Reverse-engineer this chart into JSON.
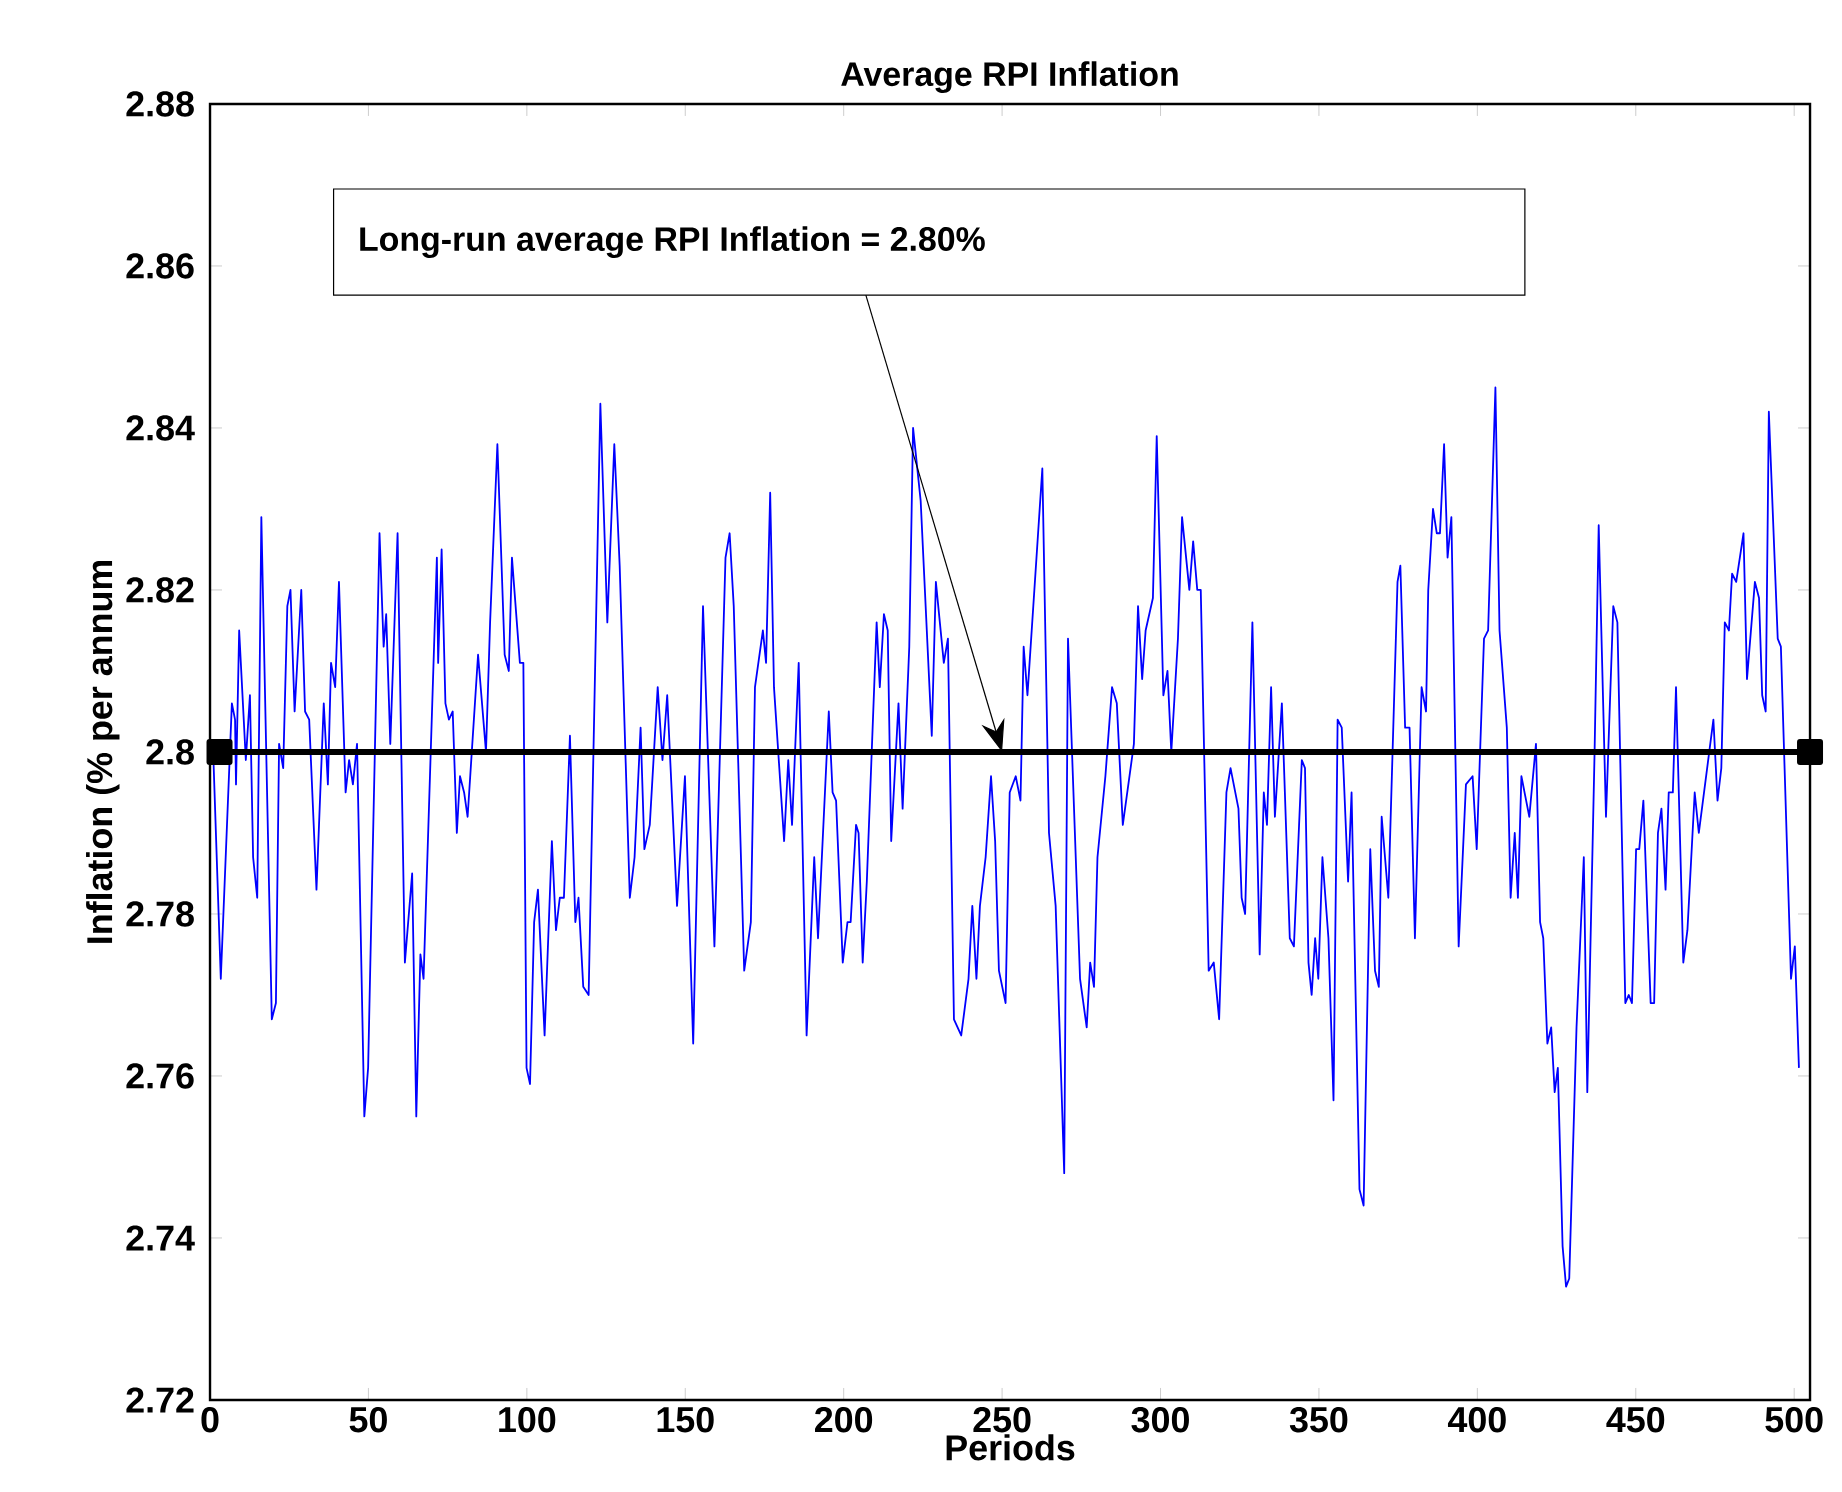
{
  "chart_data": {
    "type": "line",
    "title": "Average RPI Inflation",
    "xlabel": "Periods",
    "ylabel": "Inflation (% per annum",
    "xlim": [
      0,
      505
    ],
    "ylim": [
      2.72,
      2.88
    ],
    "xticks": [
      0,
      50,
      100,
      150,
      200,
      250,
      300,
      350,
      400,
      450,
      500
    ],
    "yticks": [
      2.72,
      2.74,
      2.76,
      2.78,
      2.8,
      2.82,
      2.84,
      2.86,
      2.88
    ],
    "annotations": [
      "Long-run average RPI Inflation = 2.80%"
    ],
    "series": [
      {
        "color": "#0000ff",
        "x": [
          1,
          3.4,
          6.9,
          7.9,
          8.2,
          9.2,
          11.3,
          12.6,
          13.6,
          14.9,
          16.2,
          19.5,
          20.8,
          21.8,
          23.1,
          24.4,
          25.4,
          26.7,
          28.8,
          30,
          31.3,
          33.6,
          35.9,
          37.2,
          38.2,
          39.5,
          40.7,
          42.8,
          43.9,
          45.1,
          46.4,
          48.7,
          49.9,
          53.5,
          54.8,
          55.6,
          56.9,
          59.2,
          61.5,
          63.8,
          65.1,
          66.4,
          67.4,
          71.6,
          72,
          73.1,
          74.3,
          75.4,
          76.6,
          77.9,
          78.9,
          80.2,
          81.3,
          84.6,
          87.1,
          88.4,
          90.7,
          93,
          94.3,
          95.3,
          97.8,
          98.9,
          99.9,
          101,
          102.3,
          103.5,
          105.6,
          107.9,
          109.2,
          110.4,
          111.7,
          113.6,
          115.3,
          116.3,
          117.8,
          119.5,
          123.2,
          125.4,
          127.6,
          129.3,
          132.5,
          134,
          135.9,
          137.1,
          138.8,
          141.3,
          142.8,
          144.3,
          147.4,
          149.9,
          152.5,
          155.6,
          159.2,
          162.7,
          164,
          165.3,
          168.6,
          170.7,
          172,
          174.5,
          175.5,
          176.8,
          178,
          181.2,
          182.5,
          183.7,
          185.8,
          188.3,
          190.7,
          191.9,
          195.3,
          196.5,
          197.6,
          199.7,
          201.2,
          202.2,
          203.9,
          204.7,
          206,
          207.3,
          210.4,
          211.4,
          212.7,
          213.9,
          215,
          217.3,
          218.6,
          220.7,
          221.9,
          224.3,
          227.8,
          229.1,
          231.6,
          232.9,
          234.8,
          237.1,
          239.4,
          240.6,
          241.9,
          243,
          244.8,
          246.5,
          247.8,
          249,
          251.1,
          252.4,
          254.3,
          255.8,
          256.8,
          258,
          262.7,
          264.8,
          266.9,
          269.6,
          270.8,
          274.6,
          276.7,
          277.8,
          279,
          280.1,
          282.6,
          284.7,
          286.2,
          288.1,
          291.6,
          292.9,
          294.2,
          295.3,
          297.6,
          298.8,
          300.9,
          302.2,
          303.4,
          305.5,
          306.8,
          309.1,
          310.3,
          311.6,
          312.7,
          315.2,
          316.8,
          318.5,
          320.8,
          322.1,
          324.6,
          325.6,
          326.7,
          329,
          331.3,
          332.6,
          333.6,
          334.9,
          336.1,
          338.3,
          340.8,
          342.1,
          344.6,
          345.6,
          346.7,
          347.7,
          348.8,
          349.8,
          351.1,
          353,
          354.6,
          355.9,
          357.2,
          359.2,
          360.3,
          362.8,
          364.1,
          366.2,
          367.7,
          368.9,
          369.8,
          371.9,
          374.8,
          375.7,
          377.2,
          378.6,
          380.3,
          382.4,
          383.8,
          384.5,
          386,
          387.2,
          388.2,
          389.5,
          390.6,
          391.8,
          394.1,
          396.4,
          398.5,
          399.8,
          402.1,
          403.4,
          405.7,
          407,
          409.3,
          410.5,
          411.8,
          412.8,
          413.9,
          416.4,
          418.5,
          419.8,
          420.8,
          422.1,
          423.3,
          424.4,
          425.4,
          426.9,
          428,
          429,
          431.3,
          433.6,
          434.7,
          437,
          438.3,
          440.6,
          442.9,
          444.2,
          446.7,
          447.8,
          448.8,
          450.1,
          451.1,
          452.4,
          454.7,
          455.8,
          457,
          458.1,
          459.4,
          460.4,
          461.7,
          462.7,
          465,
          466.3,
          468.6,
          469.9,
          474.5,
          475.8,
          477,
          478.1,
          479.4,
          480.4,
          481.7,
          484,
          485.1,
          487.6,
          488.9,
          489.9,
          491,
          492,
          494.8,
          495.8,
          499,
          500.2,
          501.5
        ],
        "values": [
          2.8,
          2.772,
          2.806,
          2.804,
          2.796,
          2.815,
          2.799,
          2.807,
          2.787,
          2.782,
          2.829,
          2.767,
          2.769,
          2.801,
          2.798,
          2.818,
          2.82,
          2.805,
          2.82,
          2.805,
          2.804,
          2.783,
          2.806,
          2.796,
          2.811,
          2.808,
          2.821,
          2.795,
          2.799,
          2.796,
          2.801,
          2.755,
          2.761,
          2.827,
          2.813,
          2.817,
          2.801,
          2.827,
          2.774,
          2.785,
          2.755,
          2.775,
          2.772,
          2.824,
          2.811,
          2.825,
          2.806,
          2.804,
          2.805,
          2.79,
          2.797,
          2.795,
          2.792,
          2.812,
          2.8,
          2.816,
          2.838,
          2.812,
          2.81,
          2.824,
          2.811,
          2.811,
          2.761,
          2.759,
          2.779,
          2.783,
          2.765,
          2.789,
          2.778,
          2.782,
          2.782,
          2.802,
          2.779,
          2.782,
          2.771,
          2.77,
          2.843,
          2.816,
          2.838,
          2.823,
          2.782,
          2.787,
          2.803,
          2.788,
          2.791,
          2.808,
          2.799,
          2.807,
          2.781,
          2.797,
          2.764,
          2.818,
          2.776,
          2.824,
          2.827,
          2.818,
          2.773,
          2.779,
          2.808,
          2.815,
          2.811,
          2.832,
          2.808,
          2.789,
          2.799,
          2.791,
          2.811,
          2.765,
          2.787,
          2.777,
          2.805,
          2.795,
          2.794,
          2.774,
          2.779,
          2.779,
          2.791,
          2.79,
          2.774,
          2.784,
          2.816,
          2.808,
          2.817,
          2.815,
          2.789,
          2.806,
          2.793,
          2.813,
          2.84,
          2.831,
          2.802,
          2.821,
          2.811,
          2.814,
          2.767,
          2.765,
          2.772,
          2.781,
          2.772,
          2.781,
          2.787,
          2.797,
          2.789,
          2.773,
          2.769,
          2.795,
          2.797,
          2.794,
          2.813,
          2.807,
          2.835,
          2.79,
          2.781,
          2.748,
          2.814,
          2.772,
          2.766,
          2.774,
          2.771,
          2.787,
          2.797,
          2.808,
          2.806,
          2.791,
          2.801,
          2.818,
          2.809,
          2.815,
          2.819,
          2.839,
          2.807,
          2.81,
          2.8,
          2.814,
          2.829,
          2.82,
          2.826,
          2.82,
          2.82,
          2.773,
          2.774,
          2.767,
          2.795,
          2.798,
          2.793,
          2.782,
          2.78,
          2.816,
          2.775,
          2.795,
          2.791,
          2.808,
          2.792,
          2.806,
          2.777,
          2.776,
          2.799,
          2.798,
          2.774,
          2.77,
          2.777,
          2.772,
          2.787,
          2.777,
          2.757,
          2.804,
          2.803,
          2.784,
          2.795,
          2.746,
          2.744,
          2.788,
          2.773,
          2.771,
          2.792,
          2.782,
          2.821,
          2.823,
          2.803,
          2.803,
          2.777,
          2.808,
          2.805,
          2.82,
          2.83,
          2.827,
          2.827,
          2.838,
          2.824,
          2.829,
          2.776,
          2.796,
          2.797,
          2.788,
          2.814,
          2.815,
          2.845,
          2.815,
          2.803,
          2.782,
          2.79,
          2.782,
          2.797,
          2.792,
          2.801,
          2.779,
          2.777,
          2.764,
          2.766,
          2.758,
          2.761,
          2.739,
          2.734,
          2.735,
          2.766,
          2.787,
          2.758,
          2.8,
          2.828,
          2.792,
          2.818,
          2.816,
          2.769,
          2.77,
          2.769,
          2.788,
          2.788,
          2.794,
          2.769,
          2.769,
          2.79,
          2.793,
          2.783,
          2.795,
          2.795,
          2.808,
          2.774,
          2.778,
          2.795,
          2.79,
          2.804,
          2.794,
          2.798,
          2.816,
          2.815,
          2.822,
          2.821,
          2.827,
          2.809,
          2.821,
          2.819,
          2.807,
          2.805,
          2.842,
          2.814,
          2.813,
          2.772,
          2.776,
          2.761
        ]
      },
      {
        "color": "#000000",
        "marker": "square",
        "x": [
          3,
          505
        ],
        "values": [
          2.8,
          2.8
        ]
      }
    ]
  }
}
